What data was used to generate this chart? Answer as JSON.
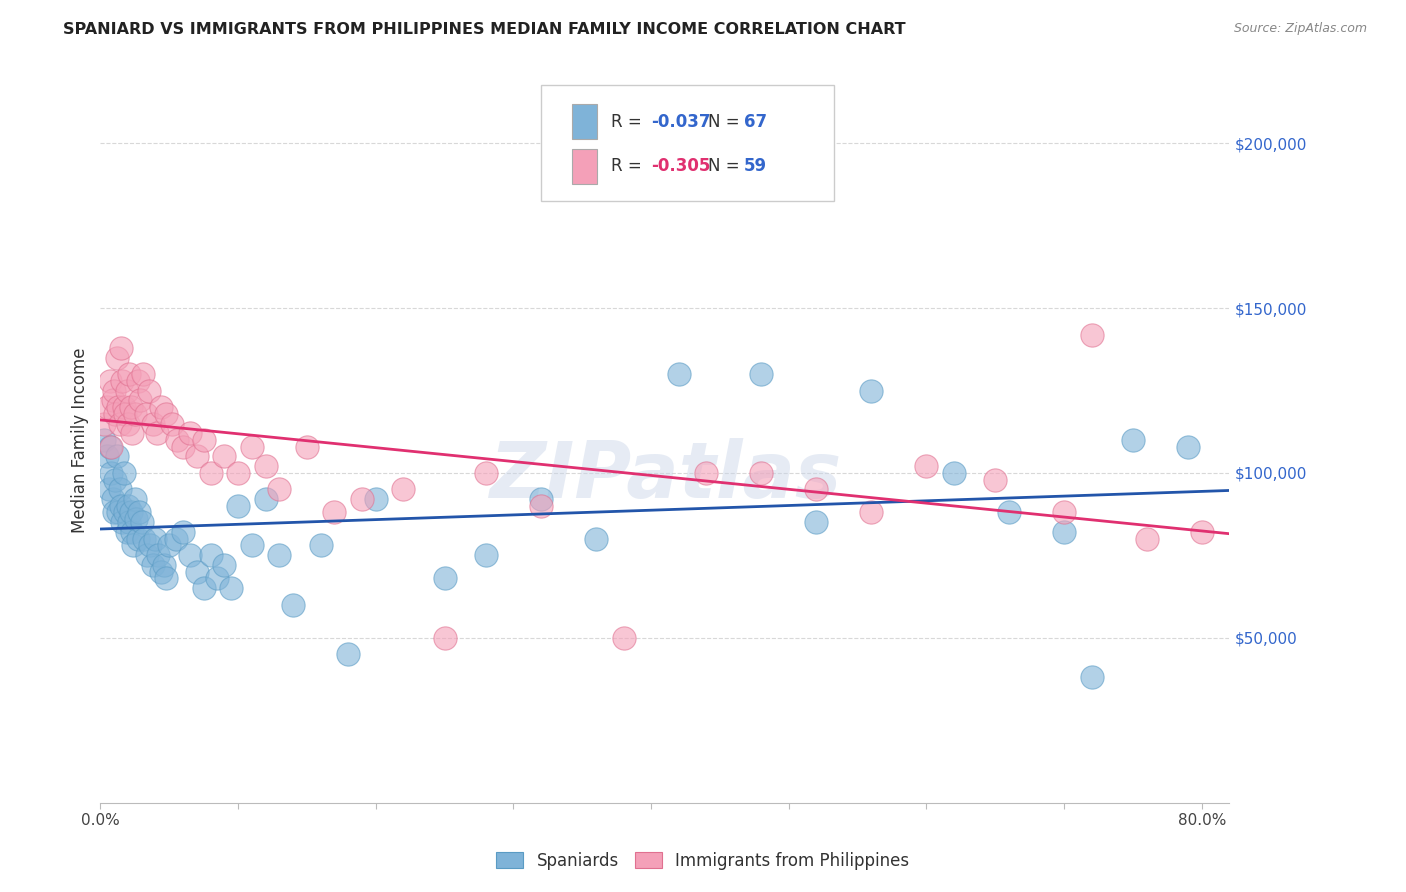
{
  "title": "SPANIARD VS IMMIGRANTS FROM PHILIPPINES MEDIAN FAMILY INCOME CORRELATION CHART",
  "source": "Source: ZipAtlas.com",
  "ylabel": "Median Family Income",
  "y_tick_labels": [
    "$50,000",
    "$100,000",
    "$150,000",
    "$200,000"
  ],
  "y_tick_values": [
    50000,
    100000,
    150000,
    200000
  ],
  "ylim": [
    0,
    220000
  ],
  "xlim": [
    0.0,
    0.82
  ],
  "watermark": "ZIPatlas",
  "blue_scatter_color": "#7fb3d8",
  "blue_scatter_edge": "#5a9bc4",
  "pink_scatter_color": "#f4a0b8",
  "pink_scatter_edge": "#e07090",
  "blue_line_color": "#2255aa",
  "pink_line_color": "#e03070",
  "grid_color": "#d8d8d8",
  "legend_box_edge": "#cccccc",
  "r_value_blue": "-0.037",
  "r_value_pink": "-0.305",
  "n_value_blue": "67",
  "n_value_pink": "59",
  "r_color_blue": "#3366cc",
  "r_color_pink": "#e03070",
  "n_color": "#3366cc",
  "spaniards_x": [
    0.003,
    0.005,
    0.006,
    0.007,
    0.008,
    0.009,
    0.01,
    0.011,
    0.012,
    0.013,
    0.014,
    0.015,
    0.016,
    0.017,
    0.018,
    0.019,
    0.02,
    0.021,
    0.022,
    0.023,
    0.024,
    0.025,
    0.026,
    0.027,
    0.028,
    0.03,
    0.032,
    0.034,
    0.036,
    0.038,
    0.04,
    0.042,
    0.044,
    0.046,
    0.048,
    0.05,
    0.055,
    0.06,
    0.065,
    0.07,
    0.075,
    0.08,
    0.085,
    0.09,
    0.095,
    0.1,
    0.11,
    0.12,
    0.13,
    0.14,
    0.16,
    0.18,
    0.2,
    0.25,
    0.28,
    0.32,
    0.36,
    0.42,
    0.48,
    0.52,
    0.56,
    0.62,
    0.66,
    0.7,
    0.72,
    0.75,
    0.79
  ],
  "spaniards_y": [
    110000,
    105000,
    95000,
    108000,
    100000,
    92000,
    88000,
    98000,
    105000,
    88000,
    95000,
    90000,
    85000,
    100000,
    88000,
    82000,
    90000,
    85000,
    88000,
    82000,
    78000,
    92000,
    86000,
    80000,
    88000,
    85000,
    80000,
    75000,
    78000,
    72000,
    80000,
    75000,
    70000,
    72000,
    68000,
    78000,
    80000,
    82000,
    75000,
    70000,
    65000,
    75000,
    68000,
    72000,
    65000,
    90000,
    78000,
    92000,
    75000,
    60000,
    78000,
    45000,
    92000,
    68000,
    75000,
    92000,
    80000,
    130000,
    130000,
    85000,
    125000,
    100000,
    88000,
    82000,
    38000,
    110000,
    108000
  ],
  "philippines_x": [
    0.003,
    0.005,
    0.007,
    0.008,
    0.009,
    0.01,
    0.011,
    0.012,
    0.013,
    0.014,
    0.015,
    0.016,
    0.017,
    0.018,
    0.019,
    0.02,
    0.021,
    0.022,
    0.023,
    0.025,
    0.027,
    0.029,
    0.031,
    0.033,
    0.035,
    0.038,
    0.041,
    0.044,
    0.048,
    0.052,
    0.056,
    0.06,
    0.065,
    0.07,
    0.075,
    0.08,
    0.09,
    0.1,
    0.11,
    0.12,
    0.13,
    0.15,
    0.17,
    0.19,
    0.22,
    0.25,
    0.28,
    0.32,
    0.38,
    0.44,
    0.48,
    0.52,
    0.56,
    0.6,
    0.65,
    0.7,
    0.72,
    0.76,
    0.8
  ],
  "philippines_y": [
    115000,
    120000,
    128000,
    108000,
    122000,
    125000,
    118000,
    135000,
    120000,
    115000,
    138000,
    128000,
    120000,
    118000,
    125000,
    115000,
    130000,
    120000,
    112000,
    118000,
    128000,
    122000,
    130000,
    118000,
    125000,
    115000,
    112000,
    120000,
    118000,
    115000,
    110000,
    108000,
    112000,
    105000,
    110000,
    100000,
    105000,
    100000,
    108000,
    102000,
    95000,
    108000,
    88000,
    92000,
    95000,
    50000,
    100000,
    90000,
    50000,
    100000,
    100000,
    95000,
    88000,
    102000,
    98000,
    88000,
    142000,
    80000,
    82000
  ]
}
